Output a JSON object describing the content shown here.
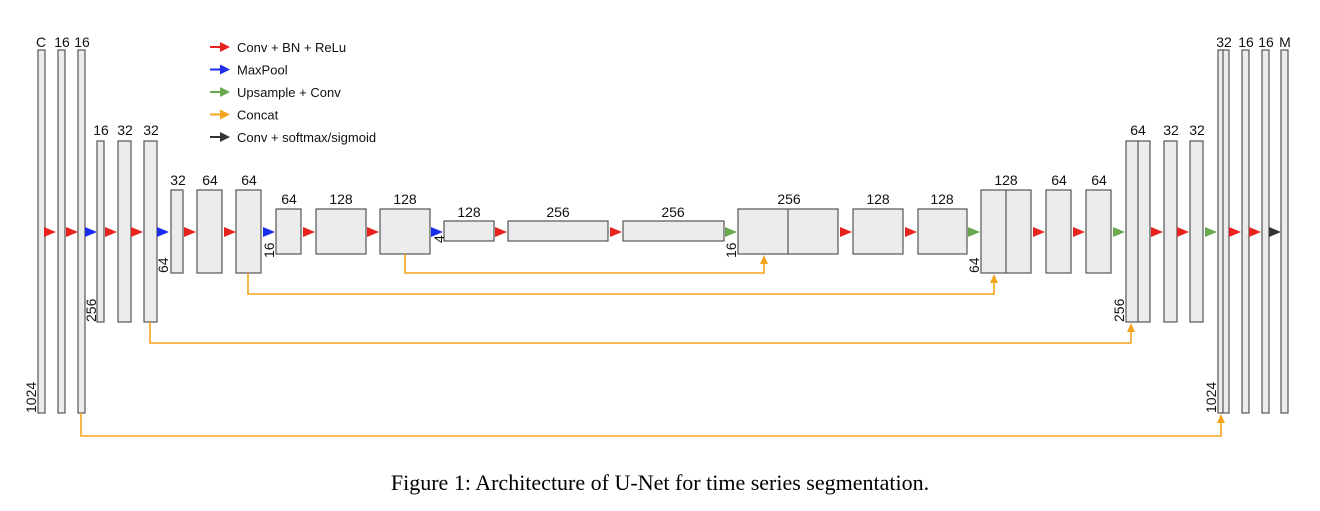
{
  "caption": "Figure 1: Architecture of U-Net for time series segmentation.",
  "legend": [
    {
      "color": "#e8231e",
      "label": "Conv + BN + ReLu"
    },
    {
      "color": "#1d2ee8",
      "label": "MaxPool"
    },
    {
      "color": "#6aa84f",
      "label": "Upsample + Conv"
    },
    {
      "color": "#f4a41c",
      "label": "Concat"
    },
    {
      "color": "#333333",
      "label": "Conv + softmax/sigmoid"
    }
  ],
  "colors": {
    "block_fill": "#ececec",
    "block_stroke": "#555555",
    "concat": "#f4a41c"
  },
  "encoder_top_labels": [
    "C",
    "16",
    "16",
    "16",
    "32",
    "32",
    "32",
    "64",
    "64",
    "64",
    "128",
    "128",
    "128",
    "256",
    "256"
  ],
  "encoder_side_labels": [
    "1024",
    "256",
    "64",
    "16",
    "4"
  ],
  "decoder_top_labels": [
    "256",
    "128",
    "128",
    "128",
    "64",
    "64",
    "64",
    "32",
    "32",
    "32",
    "16",
    "16",
    "M"
  ],
  "decoder_side_labels": [
    "16",
    "64",
    "256",
    "1024"
  ]
}
